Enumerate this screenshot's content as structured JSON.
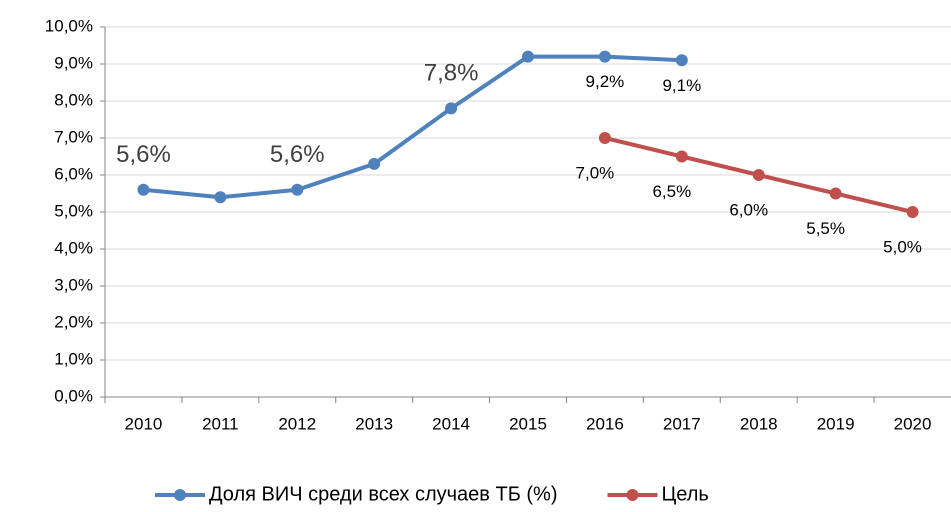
{
  "chart_data": {
    "type": "line",
    "categories": [
      "2010",
      "2011",
      "2012",
      "2013",
      "2014",
      "2015",
      "2016",
      "2017",
      "2018",
      "2019",
      "2020"
    ],
    "series": [
      {
        "name": "Доля ВИЧ среди всех случаев ТБ (%)",
        "color": "#4f81bd",
        "values": [
          5.6,
          5.4,
          5.6,
          6.3,
          7.8,
          9.2,
          9.2,
          9.1,
          null,
          null,
          null
        ],
        "value_labels": [
          "5,6%",
          null,
          "5,6%",
          null,
          "7,8%",
          null,
          "9,2%",
          "9,1%",
          null,
          null,
          null
        ]
      },
      {
        "name": "Цель",
        "color": "#c0504d",
        "values": [
          null,
          null,
          null,
          null,
          null,
          null,
          7.0,
          6.5,
          6.0,
          5.5,
          5.0
        ],
        "value_labels": [
          null,
          null,
          null,
          null,
          null,
          null,
          "7,0%",
          "6,5%",
          "6,0%",
          "5,5%",
          "5,0%"
        ]
      }
    ],
    "ylim": [
      0,
      10
    ],
    "yticks": [
      {
        "value": 0,
        "label": "0,0%"
      },
      {
        "value": 1,
        "label": "1,0%"
      },
      {
        "value": 2,
        "label": "2,0%"
      },
      {
        "value": 3,
        "label": "3,0%"
      },
      {
        "value": 4,
        "label": "4,0%"
      },
      {
        "value": 5,
        "label": "5,0%"
      },
      {
        "value": 6,
        "label": "6,0%"
      },
      {
        "value": 7,
        "label": "7,0%"
      },
      {
        "value": 8,
        "label": "8,0%"
      },
      {
        "value": 9,
        "label": "9,0%"
      },
      {
        "value": 10,
        "label": "10,0%"
      }
    ],
    "grid": true,
    "legend": "bottom"
  }
}
